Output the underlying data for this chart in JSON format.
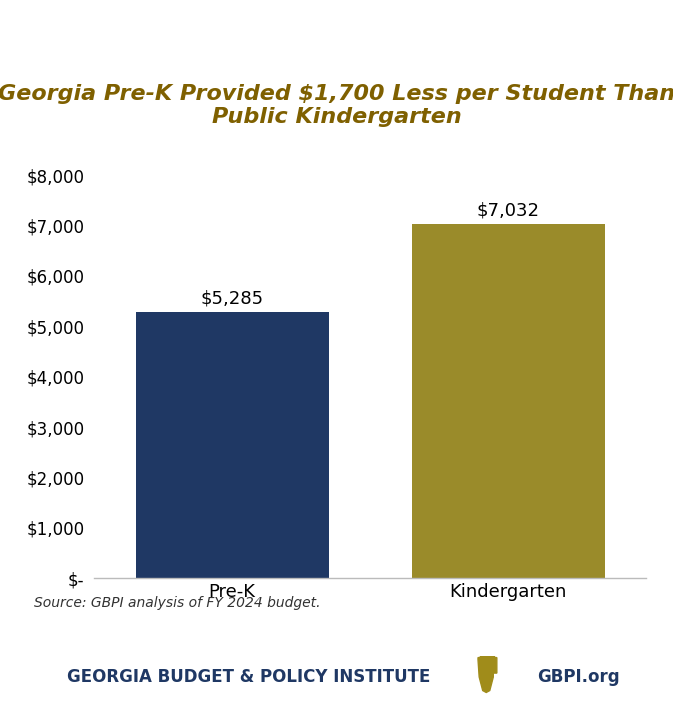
{
  "categories": [
    "Pre-K",
    "Kindergarten"
  ],
  "values": [
    5285,
    7032
  ],
  "bar_colors": [
    "#1f3864",
    "#9a8b2a"
  ],
  "bar_labels": [
    "$5,285",
    "$7,032"
  ],
  "title_line1": "Georgia Pre-K Provided $1,700 Less per Student Than",
  "title_line2": "Public Kindergarten",
  "title_color": "#7f6000",
  "ylabel_ticks": [
    0,
    1000,
    2000,
    3000,
    4000,
    5000,
    6000,
    7000,
    8000
  ],
  "ytick_labels": [
    "$-",
    "$1,000",
    "$2,000",
    "$3,000",
    "$4,000",
    "$5,000",
    "$6,000",
    "$7,000",
    "$8,000"
  ],
  "ylim": [
    0,
    8400
  ],
  "source_text": "Source: GBPI analysis of FY 2024 budget.",
  "footer_org": "GEORGIA BUDGET & POLICY INSTITUTE",
  "footer_url": "GBPI.org",
  "footer_color": "#1f3864",
  "peach_color": "#a08c1a",
  "background_color": "#ffffff",
  "bar_label_color": "#000000",
  "bar_label_fontsize": 13,
  "title_fontsize": 16,
  "tick_fontsize": 12,
  "xlabel_fontsize": 13,
  "source_fontsize": 10,
  "footer_fontsize": 12,
  "bar_width": 0.35,
  "x_positions": [
    0.25,
    0.75
  ]
}
